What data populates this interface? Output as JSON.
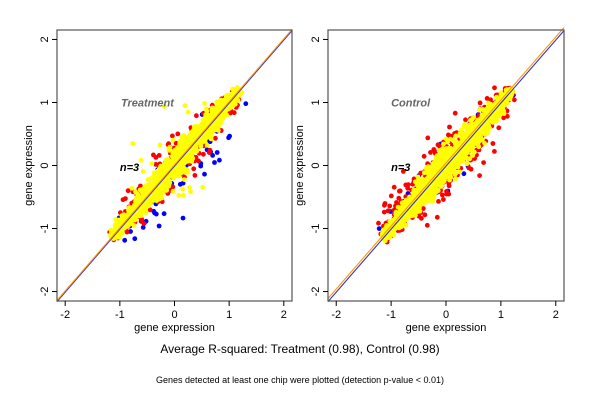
{
  "chart_data": [
    {
      "type": "scatter",
      "panel": "left",
      "title": "Treatment",
      "annotation": "n=3",
      "xlabel": "gene expression",
      "ylabel": "gene expression",
      "xlim": [
        -2.15,
        2.15
      ],
      "ylim": [
        -2.15,
        2.15
      ],
      "xticks": [
        -2,
        -1,
        0,
        1,
        2
      ],
      "yticks": [
        -2,
        -1,
        0,
        1,
        2
      ],
      "reference_lines": [
        {
          "name": "identity",
          "slope": 1,
          "intercept": 0,
          "color": "#3333cc"
        },
        {
          "name": "fit",
          "slope": 1,
          "intercept": 0,
          "color": "#ff9900"
        }
      ],
      "series": [
        {
          "name": "blue",
          "color": "#0000ff",
          "description": "points off-diagonal (below)",
          "spread": 0.35,
          "bias": -0.25,
          "count": 60
        },
        {
          "name": "red",
          "color": "#ff0000",
          "spread": 0.22,
          "bias": 0.0,
          "count": 260
        },
        {
          "name": "yellow",
          "color": "#ffff00",
          "spread": 0.13,
          "bias": 0.03,
          "count": 1400
        },
        {
          "name": "yellow-outliers",
          "color": "#ffff00",
          "spread": 0.4,
          "bias": 0.3,
          "count": 40
        }
      ],
      "range": [
        -1.15,
        1.2
      ]
    },
    {
      "type": "scatter",
      "panel": "right",
      "title": "Control",
      "annotation": "n=3",
      "xlabel": "gene expression",
      "ylabel": "gene expression",
      "xlim": [
        -2.15,
        2.15
      ],
      "ylim": [
        -2.15,
        2.15
      ],
      "xticks": [
        -2,
        -1,
        0,
        1,
        2
      ],
      "yticks": [
        -2,
        -1,
        0,
        1,
        2
      ],
      "reference_lines": [
        {
          "name": "identity",
          "slope": 1,
          "intercept": 0,
          "color": "#3333cc"
        },
        {
          "name": "fit",
          "slope": 1,
          "intercept": 0.03,
          "color": "#ff9900"
        }
      ],
      "series": [
        {
          "name": "blue",
          "color": "#0000ff",
          "spread": 0.3,
          "bias": 0.0,
          "count": 40
        },
        {
          "name": "red",
          "color": "#ff0000",
          "spread": 0.3,
          "bias": 0.05,
          "count": 380
        },
        {
          "name": "yellow",
          "color": "#ffff00",
          "spread": 0.14,
          "bias": 0.0,
          "count": 1400
        }
      ],
      "range": [
        -1.15,
        1.2
      ]
    }
  ],
  "captions": {
    "main": "Average R-squared: Treatment (0.98), Control (0.98)",
    "note": "Genes detected at least one chip were plotted (detection p-value < 0.01)"
  }
}
